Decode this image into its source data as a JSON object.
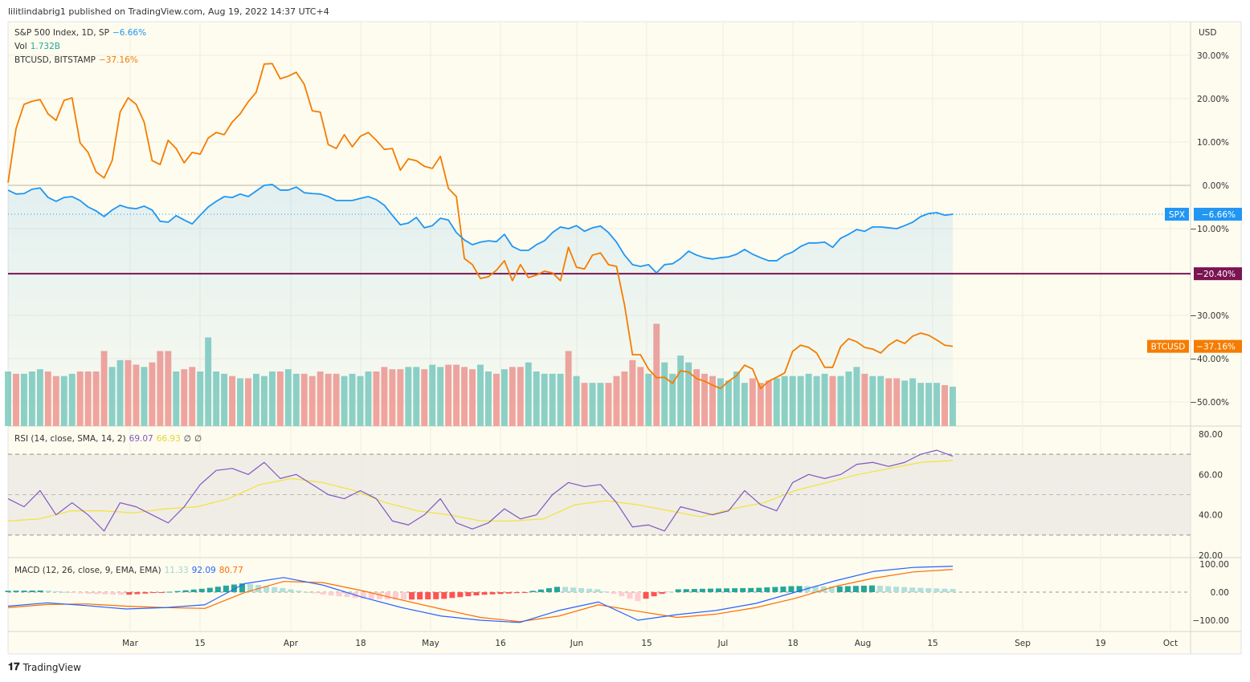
{
  "header": {
    "published": "lilitlindabrig1 published on TradingView.com, Aug 19, 2022 14:37 UTC+4"
  },
  "legend": {
    "spx_title": "S&P 500 Index, 1D, SP",
    "spx_value": "−6.66%",
    "vol_title": "Vol",
    "vol_value": "1.732B",
    "btc_title": "BTCUSD, BITSTAMP",
    "btc_value": "−37.16%",
    "rsi_title": "RSI (14, close, SMA, 14, 2)",
    "rsi_value": "69.07",
    "rsi_sma_value": "66.93",
    "rsi_extra1": "∅",
    "rsi_extra2": "∅",
    "macd_title": "MACD (12, 26, close, 9, EMA, EMA)",
    "macd_hist_value": "11.33",
    "macd_value": "92.09",
    "macd_signal_value": "80.77"
  },
  "footer": {
    "brand": "TradingView"
  },
  "colors": {
    "background": "#fdfcef",
    "spx": "#2196f3",
    "btc": "#f57c00",
    "level": "#7b1452",
    "vol_up": "#8fd1c4",
    "vol_down": "#f5a49b",
    "rsi": "#7e57c2",
    "rsi_sma": "#f2e33b",
    "macd": "#2962ff",
    "signal": "#ff6d00",
    "hist_up_strong": "#26a69a",
    "hist_up_weak": "#b2dfdb",
    "hist_down_strong": "#ff5252",
    "hist_down_weak": "#ffcdd2"
  },
  "chart_data": [
    {
      "type": "line",
      "pane": "price",
      "currency_label": "USD",
      "yaxis_ticks": [
        "30.00%",
        "20.00%",
        "10.00%",
        "0.00%",
        "−10.00%",
        "−30.00%",
        "−40.00%",
        "−50.00%"
      ],
      "yaxis_tick_values": [
        30,
        20,
        10,
        0,
        -10,
        -30,
        -40,
        -50
      ],
      "ylim": [
        -55,
        35
      ],
      "xaxis_ticks": [
        "Mar",
        "15",
        "Apr",
        "18",
        "May",
        "16",
        "Jun",
        "15",
        "Jul",
        "18",
        "Aug",
        "15",
        "Sep",
        "19",
        "Oct"
      ],
      "x_range": [
        "2022-02-18",
        "2022-10-07"
      ],
      "grid": true,
      "level_line": {
        "value": -20.4,
        "label": "−20.40%"
      },
      "series": [
        {
          "name": "SPX",
          "badge": "SPX",
          "last_label": "−6.66%",
          "style": "area",
          "values": [
            -1.1,
            -2.0,
            -1.9,
            -0.9,
            -0.6,
            -2.8,
            -3.7,
            -2.8,
            -2.6,
            -3.5,
            -5.0,
            -5.9,
            -7.2,
            -5.7,
            -4.6,
            -5.2,
            -5.4,
            -4.8,
            -5.7,
            -8.3,
            -8.5,
            -7.0,
            -8.0,
            -8.9,
            -6.9,
            -5.0,
            -3.7,
            -2.6,
            -2.8,
            -2.0,
            -2.6,
            -1.3,
            0.0,
            0.2,
            -1.1,
            -1.1,
            -0.4,
            -1.7,
            -1.9,
            -2.0,
            -2.6,
            -3.5,
            -3.5,
            -3.5,
            -3.0,
            -2.6,
            -3.3,
            -4.6,
            -6.9,
            -9.1,
            -8.7,
            -7.4,
            -9.8,
            -9.3,
            -7.6,
            -8.0,
            -10.9,
            -12.6,
            -13.7,
            -13.1,
            -12.8,
            -13.0,
            -11.3,
            -14.1,
            -15.0,
            -15.0,
            -13.7,
            -12.8,
            -10.9,
            -9.6,
            -10.0,
            -9.3,
            -10.6,
            -9.8,
            -9.4,
            -10.9,
            -13.1,
            -16.1,
            -18.3,
            -18.7,
            -18.3,
            -20.2,
            -18.3,
            -18.1,
            -16.9,
            -15.2,
            -16.1,
            -16.7,
            -17.0,
            -16.7,
            -16.5,
            -15.9,
            -14.8,
            -15.9,
            -16.7,
            -17.4,
            -17.4,
            -16.1,
            -15.4,
            -14.1,
            -13.3,
            -13.3,
            -13.1,
            -14.3,
            -12.2,
            -11.3,
            -10.2,
            -10.6,
            -9.6,
            -9.6,
            -9.8,
            -10.0,
            -9.3,
            -8.5,
            -7.2,
            -6.5,
            -6.3,
            -6.9,
            -6.66
          ]
        },
        {
          "name": "BTCUSD",
          "badge": "BTCUSD",
          "last_label": "−37.16%",
          "style": "line",
          "values": [
            0.6,
            13.1,
            18.7,
            19.4,
            19.8,
            16.5,
            15.0,
            19.6,
            20.2,
            9.8,
            7.6,
            3.1,
            1.7,
            5.7,
            16.9,
            20.2,
            18.7,
            14.6,
            5.7,
            4.8,
            10.4,
            8.5,
            5.2,
            7.6,
            7.2,
            10.9,
            12.2,
            11.7,
            14.6,
            16.5,
            19.3,
            21.5,
            28.0,
            28.1,
            24.6,
            25.2,
            26.1,
            23.3,
            17.2,
            16.9,
            9.4,
            8.5,
            11.7,
            8.9,
            11.3,
            12.2,
            10.4,
            8.3,
            8.5,
            3.5,
            6.1,
            5.7,
            4.4,
            3.9,
            6.7,
            -0.7,
            -2.6,
            -16.9,
            -18.3,
            -21.5,
            -21.1,
            -19.6,
            -17.4,
            -22.0,
            -18.3,
            -21.3,
            -20.7,
            -19.8,
            -20.2,
            -22.0,
            -14.3,
            -18.9,
            -19.3,
            -16.1,
            -15.6,
            -18.3,
            -18.7,
            -27.6,
            -39.1,
            -39.1,
            -42.4,
            -44.4,
            -44.3,
            -45.7,
            -42.8,
            -43.1,
            -44.6,
            -45.2,
            -46.1,
            -46.9,
            -45.2,
            -43.9,
            -41.5,
            -42.4,
            -46.9,
            -45.2,
            -44.3,
            -43.3,
            -38.3,
            -36.9,
            -37.4,
            -38.7,
            -42.0,
            -42.0,
            -37.2,
            -35.4,
            -36.1,
            -37.4,
            -37.8,
            -38.7,
            -36.9,
            -35.7,
            -36.5,
            -34.8,
            -34.1,
            -34.6,
            -35.7,
            -36.9,
            -37.16
          ]
        }
      ]
    },
    {
      "type": "bar",
      "pane": "volume",
      "name": "Vol",
      "unit": "B",
      "values": [
        2.4,
        2.3,
        2.3,
        2.4,
        2.5,
        2.4,
        2.2,
        2.2,
        2.3,
        2.4,
        2.4,
        2.4,
        3.3,
        2.6,
        2.9,
        2.9,
        2.7,
        2.6,
        2.8,
        3.3,
        3.3,
        2.4,
        2.5,
        2.6,
        2.4,
        3.9,
        2.4,
        2.3,
        2.2,
        2.1,
        2.1,
        2.3,
        2.2,
        2.4,
        2.4,
        2.5,
        2.3,
        2.3,
        2.2,
        2.4,
        2.3,
        2.3,
        2.2,
        2.3,
        2.2,
        2.4,
        2.4,
        2.6,
        2.5,
        2.5,
        2.6,
        2.6,
        2.5,
        2.7,
        2.6,
        2.7,
        2.7,
        2.6,
        2.5,
        2.7,
        2.4,
        2.3,
        2.5,
        2.6,
        2.6,
        2.8,
        2.4,
        2.3,
        2.3,
        2.3,
        3.3,
        2.2,
        1.9,
        1.9,
        1.9,
        1.9,
        2.2,
        2.4,
        2.9,
        2.6,
        2.3,
        4.5,
        2.8,
        2.3,
        3.1,
        2.8,
        2.5,
        2.3,
        2.2,
        2.1,
        2.0,
        2.4,
        1.9,
        2.1,
        1.9,
        2.0,
        2.1,
        2.2,
        2.2,
        2.2,
        2.3,
        2.2,
        2.3,
        2.2,
        2.2,
        2.4,
        2.6,
        2.3,
        2.2,
        2.2,
        2.1,
        2.1,
        2.0,
        2.1,
        1.9,
        1.9,
        1.9,
        1.8,
        1.732
      ]
    },
    {
      "type": "line",
      "pane": "rsi",
      "ylim": [
        20,
        80
      ],
      "yaxis_ticks": [
        "80.00",
        "60.00",
        "40.00",
        "20.00"
      ],
      "yaxis_tick_values": [
        80,
        60,
        40,
        20
      ],
      "bands": [
        70,
        50,
        30
      ],
      "series": [
        {
          "name": "RSI",
          "values": [
            48,
            44,
            52,
            40,
            46,
            40,
            32,
            46,
            44,
            40,
            36,
            44,
            55,
            62,
            63,
            60,
            66,
            58,
            60,
            55,
            50,
            48,
            52,
            48,
            37,
            35,
            40,
            48,
            36,
            33,
            36,
            43,
            38,
            40,
            50,
            56,
            54,
            55,
            46,
            34,
            35,
            32,
            44,
            42,
            40,
            42,
            52,
            45,
            42,
            56,
            60,
            58,
            60,
            65,
            66,
            64,
            66,
            70,
            72,
            69.07
          ]
        },
        {
          "name": "RSI-based MA",
          "values": [
            37,
            38,
            42,
            42,
            41,
            43,
            44,
            48,
            55,
            58,
            56,
            52,
            46,
            42,
            40,
            37,
            37,
            38,
            45,
            47,
            45,
            42,
            39,
            43,
            46,
            52,
            56,
            60,
            63,
            66,
            66.93
          ]
        }
      ]
    },
    {
      "type": "line",
      "pane": "macd",
      "ylim": [
        -120,
        110
      ],
      "yaxis_ticks": [
        "100.00",
        "0.00",
        "−100.00"
      ],
      "yaxis_tick_values": [
        100,
        0,
        -100
      ],
      "series": [
        {
          "name": "MACD",
          "values": [
            -50,
            -38,
            -48,
            -60,
            -55,
            -45,
            30,
            52,
            25,
            -18,
            -55,
            -85,
            -100,
            -108,
            -65,
            -35,
            -100,
            -80,
            -65,
            -40,
            0,
            40,
            74,
            88,
            92.09
          ]
        },
        {
          "name": "Signal",
          "values": [
            -55,
            -44,
            -42,
            -50,
            -55,
            -58,
            -2,
            38,
            34,
            5,
            -28,
            -60,
            -90,
            -105,
            -85,
            -45,
            -68,
            -90,
            -78,
            -55,
            -22,
            20,
            50,
            72,
            80.77
          ]
        }
      ]
    }
  ]
}
